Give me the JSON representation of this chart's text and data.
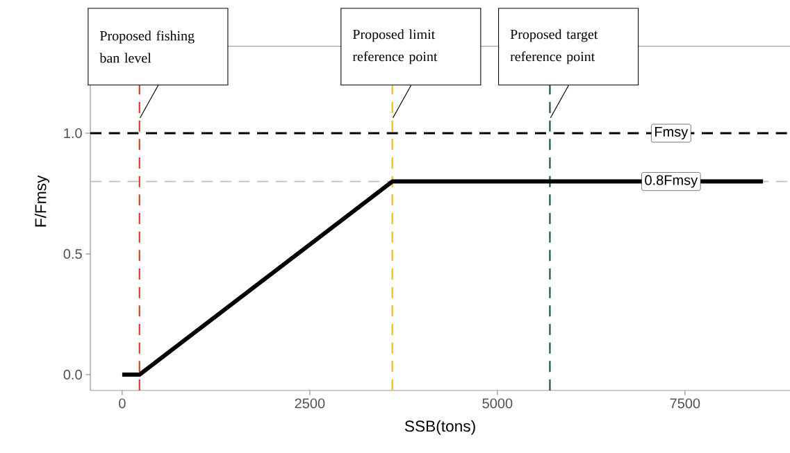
{
  "chart_data": {
    "type": "line",
    "xlabel": "SSB(tons)",
    "ylabel": "F/Fmsy",
    "x": [
      0,
      230,
      3600,
      8540
    ],
    "values": [
      0,
      0,
      0.8,
      0.8
    ],
    "color": "#000000",
    "line_style": "solid",
    "marker": "none",
    "xlim": [
      -425,
      8900
    ],
    "ylim": [
      -0.066,
      1.5
    ],
    "xticks": [
      0,
      2500,
      5000,
      7500
    ],
    "yticks": [
      {
        "value": 0,
        "label": "0.0"
      },
      {
        "value": 0.5,
        "label": "0.5"
      },
      {
        "value": 1,
        "label": "1.0"
      }
    ],
    "grid": false,
    "ref_lines": [
      {
        "axis": "y",
        "value": 1,
        "label": "Fmsy",
        "color": "#000000",
        "line_style": "dashed"
      },
      {
        "axis": "y",
        "value": 0.8,
        "label": "0.8Fmsy",
        "color": "#bebebe",
        "line_style": "dashed"
      },
      {
        "axis": "y",
        "value": 1.36,
        "color": "#6e6e6e",
        "line_style": "solid"
      },
      {
        "axis": "x",
        "value": 230,
        "label": "Proposed fishing ban level",
        "color": "#d13b2b",
        "line_style": "dashed"
      },
      {
        "axis": "x",
        "value": 3600,
        "label": "Proposed limit reference point",
        "color": "#f0b81a",
        "line_style": "dashed"
      },
      {
        "axis": "x",
        "value": 5700,
        "label": "Proposed target reference point",
        "color": "#0b5345",
        "line_style": "dashed"
      }
    ]
  }
}
